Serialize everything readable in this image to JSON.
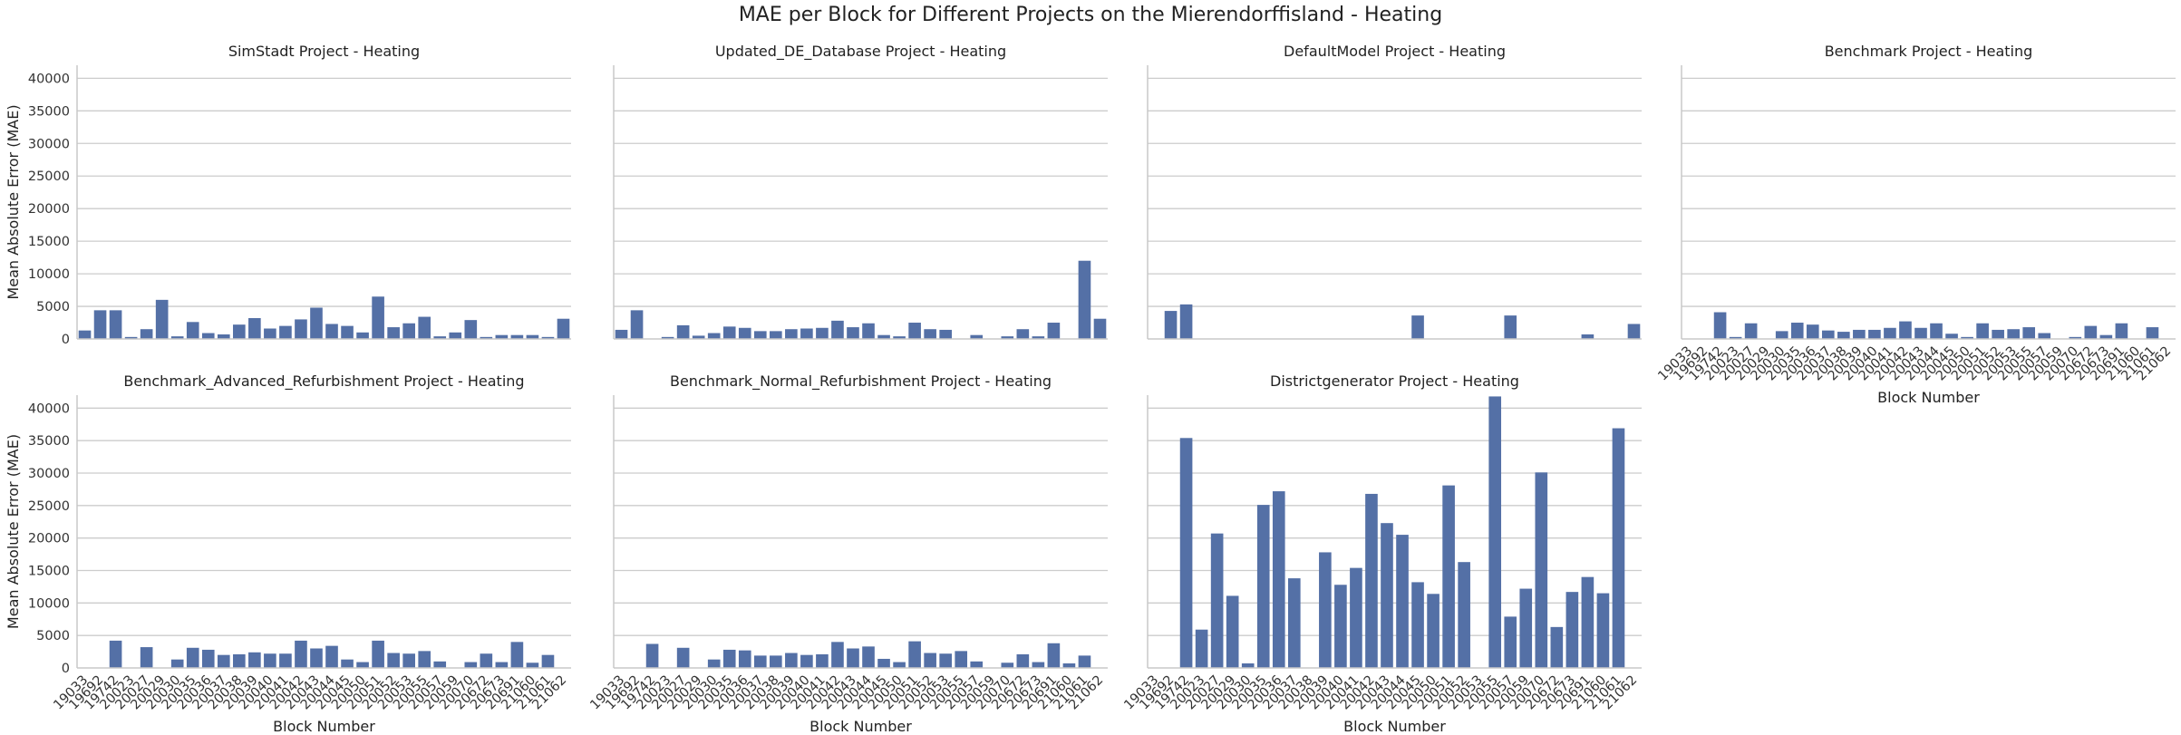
{
  "title": "MAE per Block for Different Projects on the Mierendorffisland - Heating",
  "chart_data": {
    "type": "bar",
    "title": "MAE per Block for Different Projects on the Mierendorffisland - Heating",
    "xlabel": "Block Number",
    "ylabel": "Mean Absolute Error (MAE)",
    "ylim": [
      0,
      42000
    ],
    "yticks": [
      0,
      5000,
      10000,
      15000,
      20000,
      25000,
      30000,
      35000,
      40000
    ],
    "grid": "horizontal",
    "bar_color": "#5470a6",
    "categories": [
      "19033",
      "19692",
      "19742",
      "20023",
      "20027",
      "20029",
      "20030",
      "20035",
      "20036",
      "20037",
      "20038",
      "20039",
      "20040",
      "20041",
      "20042",
      "20043",
      "20044",
      "20045",
      "20050",
      "20051",
      "20052",
      "20053",
      "20055",
      "20057",
      "20059",
      "20070",
      "20672",
      "20673",
      "20691",
      "21060",
      "21061",
      "21062"
    ],
    "series": [
      {
        "name": "SimStadt Project - Heating",
        "values": [
          1300,
          4400,
          4400,
          300,
          1500,
          6000,
          400,
          2600,
          900,
          700,
          2200,
          3200,
          1600,
          2000,
          3000,
          4800,
          2300,
          2000,
          1000,
          6500,
          1800,
          2400,
          3400,
          400,
          1000,
          2900,
          300,
          600,
          600,
          600,
          300,
          3100
        ]
      },
      {
        "name": "Updated_DE_Database Project - Heating",
        "values": [
          1400,
          4400,
          0,
          300,
          2100,
          500,
          900,
          1900,
          1700,
          1200,
          1200,
          1500,
          1600,
          1700,
          2800,
          1800,
          2400,
          600,
          400,
          2500,
          1500,
          1400,
          0,
          600,
          0,
          400,
          1500,
          400,
          2500,
          0,
          12000,
          3100
        ]
      },
      {
        "name": "DefaultModel Project - Heating",
        "values": [
          0,
          4300,
          5300,
          0,
          0,
          0,
          0,
          0,
          0,
          0,
          0,
          0,
          0,
          0,
          0,
          0,
          0,
          3600,
          0,
          0,
          0,
          0,
          0,
          3600,
          0,
          0,
          0,
          0,
          700,
          0,
          0,
          2300
        ]
      },
      {
        "name": "Benchmark Project - Heating",
        "values": [
          0,
          0,
          4100,
          300,
          2400,
          0,
          1200,
          2500,
          2200,
          1300,
          1100,
          1400,
          1400,
          1700,
          2700,
          1700,
          2400,
          800,
          300,
          2400,
          1400,
          1500,
          1800,
          900,
          0,
          300,
          2000,
          600,
          2400,
          0,
          1800,
          0
        ]
      },
      {
        "name": "Benchmark_Advanced_Refurbishment Project - Heating",
        "values": [
          0,
          0,
          4200,
          0,
          3200,
          0,
          1300,
          3100,
          2800,
          2000,
          2100,
          2400,
          2200,
          2200,
          4200,
          3000,
          3400,
          1300,
          900,
          4200,
          2300,
          2200,
          2600,
          1000,
          0,
          900,
          2200,
          900,
          4000,
          800,
          2000,
          0
        ]
      },
      {
        "name": "Benchmark_Normal_Refurbishment Project - Heating",
        "values": [
          0,
          0,
          3700,
          0,
          3100,
          0,
          1300,
          2800,
          2700,
          1900,
          1900,
          2300,
          2000,
          2100,
          4000,
          3000,
          3300,
          1400,
          900,
          4100,
          2300,
          2200,
          2600,
          1000,
          0,
          800,
          2100,
          900,
          3800,
          700,
          1900,
          0
        ]
      },
      {
        "name": "Districtgenerator Project - Heating",
        "values": [
          0,
          0,
          35400,
          5900,
          20700,
          11100,
          700,
          25100,
          27200,
          13800,
          0,
          17800,
          12800,
          15400,
          26800,
          22300,
          20500,
          13200,
          11400,
          28100,
          16300,
          0,
          41800,
          7900,
          12200,
          30100,
          6300,
          11700,
          14000,
          11500,
          36900,
          0
        ]
      }
    ]
  }
}
